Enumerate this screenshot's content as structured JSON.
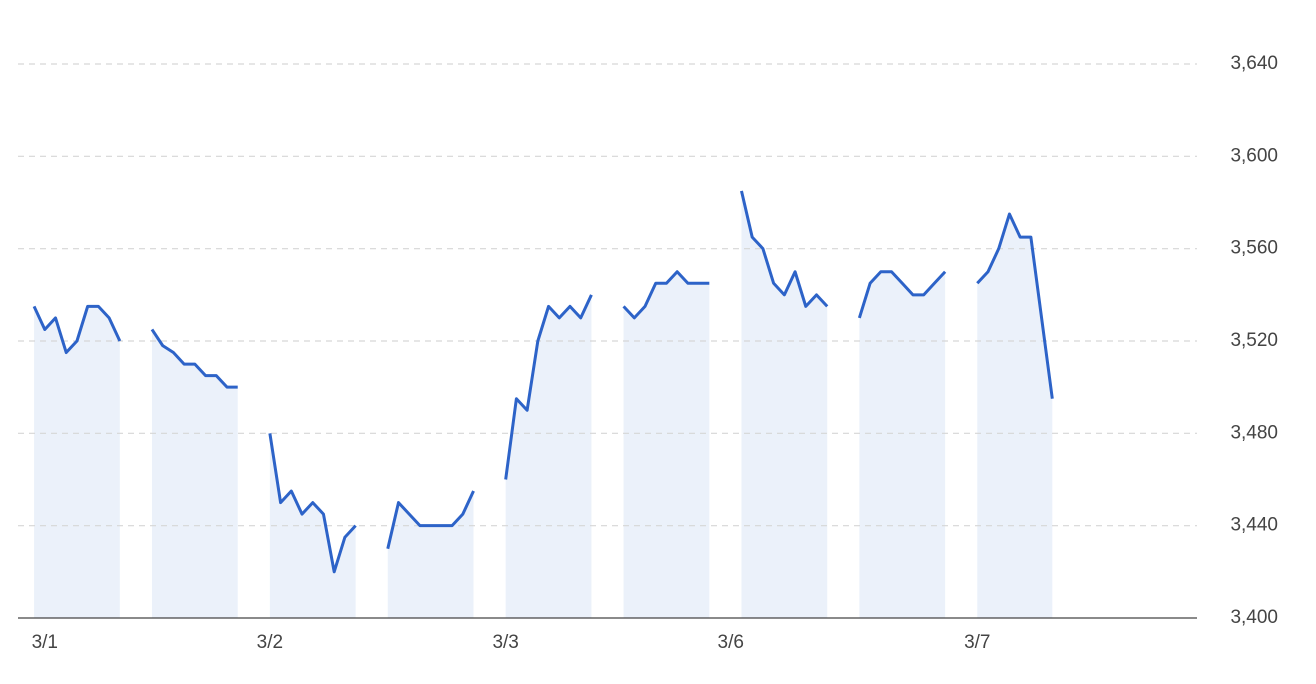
{
  "chart_data": {
    "type": "line",
    "categories": [
      null,
      null,
      "3/1",
      null,
      null,
      null,
      null,
      null,
      null,
      null,
      null,
      null,
      null,
      null,
      null,
      null,
      null,
      null,
      null,
      null,
      null,
      null,
      null,
      "3/2",
      null,
      null,
      null,
      null,
      null,
      null,
      null,
      null,
      null,
      null,
      null,
      null,
      null,
      null,
      null,
      null,
      null,
      null,
      null,
      null,
      null,
      "3/3",
      null,
      null,
      null,
      null,
      null,
      null,
      null,
      null,
      null,
      null,
      null,
      null,
      null,
      null,
      null,
      null,
      null,
      null,
      null,
      null,
      "3/6",
      null,
      null,
      null,
      null,
      null,
      null,
      null,
      null,
      null,
      null,
      null,
      null,
      null,
      null,
      null,
      null,
      null,
      null,
      null,
      null,
      null,
      null,
      "3/7",
      null,
      null,
      null,
      null,
      null,
      null,
      null,
      null,
      null,
      null,
      null,
      null,
      null,
      null,
      null,
      null,
      null,
      null,
      null,
      null
    ],
    "values": [
      null,
      3535,
      3525,
      3530,
      3515,
      3520,
      3535,
      3535,
      3530,
      3520,
      null,
      null,
      3525,
      3518,
      3515,
      3510,
      3510,
      3505,
      3505,
      3500,
      3500,
      null,
      null,
      3480,
      3450,
      3455,
      3445,
      3450,
      3445,
      3420,
      3435,
      3440,
      null,
      null,
      3430,
      3450,
      3445,
      3440,
      3440,
      3440,
      3440,
      3445,
      3455,
      null,
      null,
      3460,
      3495,
      3490,
      3520,
      3535,
      3530,
      3535,
      3530,
      3540,
      null,
      null,
      3535,
      3530,
      3535,
      3545,
      3545,
      3550,
      3545,
      3545,
      3545,
      null,
      null,
      3585,
      3565,
      3560,
      3545,
      3540,
      3550,
      3535,
      3540,
      3535,
      null,
      null,
      3530,
      3545,
      3550,
      3550,
      3545,
      3540,
      3540,
      3545,
      3550,
      null,
      null,
      3545,
      3550,
      3560,
      3575,
      3565,
      3565,
      3530,
      3495,
      null,
      null,
      null,
      null,
      null,
      null,
      null,
      null,
      null,
      null,
      null,
      null,
      null
    ],
    "color": "#2d63c8",
    "area_color": "#ebf1fa",
    "ylim": [
      3400,
      3640
    ],
    "yticks": [
      {
        "value": 3400,
        "label": "3,400"
      },
      {
        "value": 3440,
        "label": "3,440"
      },
      {
        "value": 3480,
        "label": "3,480"
      },
      {
        "value": 3520,
        "label": "3,520"
      },
      {
        "value": 3560,
        "label": "3,560"
      },
      {
        "value": 3600,
        "label": "3,600"
      },
      {
        "value": 3640,
        "label": "3,640"
      }
    ],
    "grid": true
  }
}
